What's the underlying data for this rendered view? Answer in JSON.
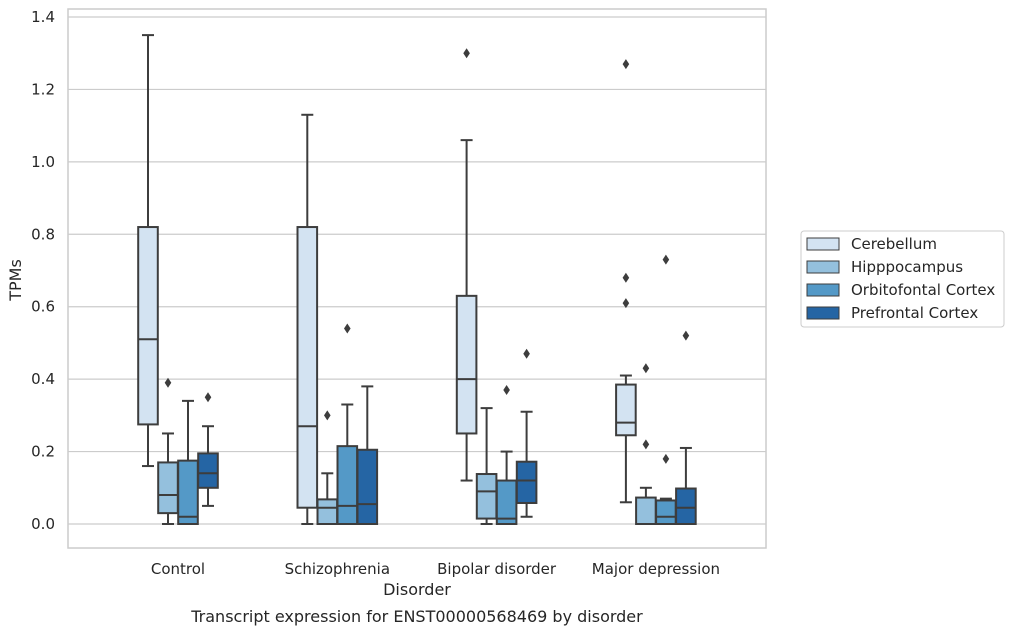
{
  "chart_data": {
    "type": "boxplot",
    "title": "",
    "caption": "Transcript expression for ENST00000568469 by disorder",
    "xlabel": "Disorder",
    "ylabel": "TPMs",
    "ylim": [
      -0.065,
      1.42
    ],
    "yticks": [
      0.0,
      0.2,
      0.4,
      0.6,
      0.8,
      1.0,
      1.2,
      1.4
    ],
    "ytick_labels": [
      "0.0",
      "0.2",
      "0.4",
      "0.6",
      "0.8",
      "1.0",
      "1.2",
      "1.4"
    ],
    "grid": true,
    "legend_position": "right",
    "categories": [
      "Control",
      "Schizophrenia",
      "Bipolar disorder",
      "Major depression"
    ],
    "series": [
      {
        "name": "Cerebellum",
        "color": "#d3e3f2",
        "boxes": [
          {
            "whislo": 0.16,
            "q1": 0.275,
            "med": 0.51,
            "q3": 0.82,
            "whishi": 1.35,
            "fliers": []
          },
          {
            "whislo": 0.0,
            "q1": 0.045,
            "med": 0.27,
            "q3": 0.82,
            "whishi": 1.13,
            "fliers": []
          },
          {
            "whislo": 0.12,
            "q1": 0.25,
            "med": 0.4,
            "q3": 0.63,
            "whishi": 1.06,
            "fliers": [
              1.3
            ]
          },
          {
            "whislo": 0.06,
            "q1": 0.245,
            "med": 0.28,
            "q3": 0.385,
            "whishi": 0.41,
            "fliers": [
              0.68,
              0.61,
              1.27
            ]
          }
        ]
      },
      {
        "name": "Hipppocampus",
        "color": "#94c0dd",
        "boxes": [
          {
            "whislo": 0.0,
            "q1": 0.03,
            "med": 0.08,
            "q3": 0.17,
            "whishi": 0.25,
            "fliers": [
              0.39
            ]
          },
          {
            "whislo": 0.0,
            "q1": 0.0,
            "med": 0.045,
            "q3": 0.068,
            "whishi": 0.14,
            "fliers": [
              0.3
            ]
          },
          {
            "whislo": 0.0,
            "q1": 0.015,
            "med": 0.09,
            "q3": 0.138,
            "whishi": 0.32,
            "fliers": []
          },
          {
            "whislo": 0.0,
            "q1": 0.0,
            "med": 0.0,
            "q3": 0.073,
            "whishi": 0.1,
            "fliers": [
              0.43,
              0.22
            ]
          }
        ]
      },
      {
        "name": "Orbitofontal Cortex",
        "color": "#5499c7",
        "boxes": [
          {
            "whislo": 0.0,
            "q1": 0.0,
            "med": 0.02,
            "q3": 0.175,
            "whishi": 0.34,
            "fliers": []
          },
          {
            "whislo": 0.0,
            "q1": 0.0,
            "med": 0.05,
            "q3": 0.215,
            "whishi": 0.33,
            "fliers": [
              0.54
            ]
          },
          {
            "whislo": 0.0,
            "q1": 0.0,
            "med": 0.015,
            "q3": 0.12,
            "whishi": 0.2,
            "fliers": [
              0.37
            ]
          },
          {
            "whislo": 0.0,
            "q1": 0.0,
            "med": 0.02,
            "q3": 0.065,
            "whishi": 0.07,
            "fliers": [
              0.73,
              0.18
            ]
          }
        ]
      },
      {
        "name": "Prefrontal Cortex",
        "color": "#2565a4",
        "boxes": [
          {
            "whislo": 0.05,
            "q1": 0.1,
            "med": 0.14,
            "q3": 0.195,
            "whishi": 0.27,
            "fliers": [
              0.35
            ]
          },
          {
            "whislo": 0.0,
            "q1": 0.0,
            "med": 0.055,
            "q3": 0.205,
            "whishi": 0.38,
            "fliers": []
          },
          {
            "whislo": 0.02,
            "q1": 0.058,
            "med": 0.12,
            "q3": 0.172,
            "whishi": 0.31,
            "fliers": [
              0.47
            ]
          },
          {
            "whislo": 0.0,
            "q1": 0.0,
            "med": 0.045,
            "q3": 0.098,
            "whishi": 0.21,
            "fliers": [
              0.52
            ]
          }
        ]
      }
    ]
  }
}
